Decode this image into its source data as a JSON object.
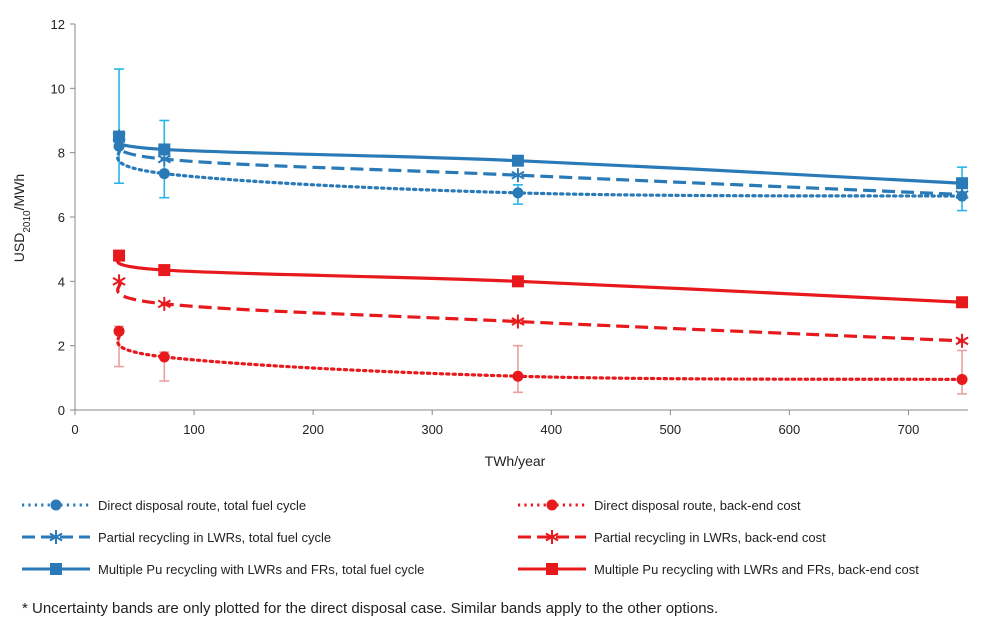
{
  "chart_data": {
    "type": "line",
    "xlabel": "TWh/year",
    "ylabel_main": "USD",
    "ylabel_sub": "2010",
    "ylabel_suffix": "/MWh",
    "xlim": [
      0,
      750
    ],
    "ylim": [
      0,
      12
    ],
    "x_ticks": [
      0,
      100,
      200,
      300,
      400,
      500,
      600,
      700
    ],
    "y_ticks": [
      0,
      2,
      4,
      6,
      8,
      10,
      12
    ],
    "grid": false,
    "legend_position": "bottom",
    "x": [
      37,
      75,
      372,
      745
    ],
    "series": [
      {
        "name": "Direct disposal route, total fuel cycle",
        "color": "#2a7ab8",
        "dash": "dotted",
        "marker": "circle",
        "values": [
          8.2,
          7.35,
          6.75,
          6.65
        ]
      },
      {
        "name": "Partial recycling in LWRs, total fuel cycle",
        "color": "#2a7ab8",
        "dash": "dashed",
        "marker": "asterisk",
        "values": [
          8.5,
          7.8,
          7.3,
          6.7
        ]
      },
      {
        "name": "Multiple Pu recycling with LWRs and FRs, total fuel cycle",
        "color": "#2a7ab8",
        "dash": "solid",
        "marker": "square",
        "values": [
          8.5,
          8.1,
          7.75,
          7.05
        ]
      },
      {
        "name": "Direct disposal route, back-end cost",
        "color": "#e8191c",
        "dash": "dotted",
        "marker": "circle",
        "values": [
          2.45,
          1.65,
          1.05,
          0.95
        ]
      },
      {
        "name": "Partial recycling in LWRs, back-end cost",
        "color": "#e8191c",
        "dash": "dashed",
        "marker": "asterisk",
        "values": [
          4.0,
          3.3,
          2.75,
          2.15
        ]
      },
      {
        "name": "Multiple Pu recycling with LWRs and FRs, back-end cost",
        "color": "#e8191c",
        "dash": "solid",
        "marker": "square",
        "values": [
          4.8,
          4.35,
          4.0,
          3.35
        ]
      }
    ],
    "error_bars": [
      {
        "color": "#29b5e8",
        "x": [
          37,
          75,
          372,
          745
        ],
        "low": [
          7.05,
          6.6,
          6.4,
          6.2
        ],
        "high": [
          10.6,
          9.0,
          7.0,
          7.55
        ]
      },
      {
        "color": "#e8a0a0",
        "x": [
          37,
          75,
          372,
          745
        ],
        "low": [
          1.35,
          0.9,
          0.55,
          0.5
        ],
        "high": [
          2.6,
          1.8,
          2.0,
          1.85
        ]
      }
    ]
  },
  "footnote": "* Uncertainty bands are only plotted for the direct disposal case. Similar bands apply to the other options."
}
